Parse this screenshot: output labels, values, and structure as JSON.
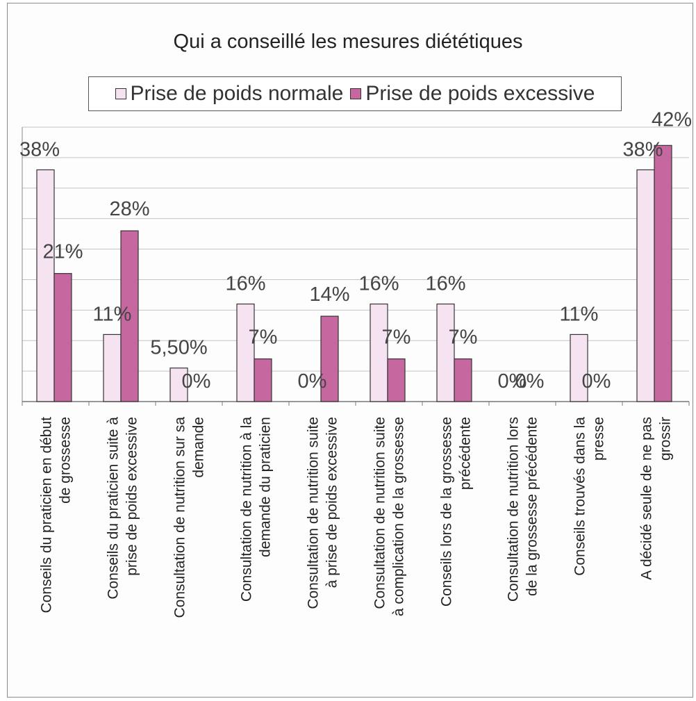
{
  "chart_data": {
    "type": "bar",
    "title": "Qui a conseillé les mesures diététiques",
    "categories": [
      [
        "Conseils du praticien en début",
        "de grossesse"
      ],
      [
        "Conseils du praticien suite à",
        "prise de poids excessive"
      ],
      [
        "Consultation de nutrition sur sa",
        "demande"
      ],
      [
        "Consultation de nutrition à la",
        "demande du praticien"
      ],
      [
        "Consultation de nutrition suite",
        "à prise de poids excessive"
      ],
      [
        "Consultation de nutrition suite",
        "à complication de la grossesse"
      ],
      [
        "Conseils lors de la grossesse",
        "précédente"
      ],
      [
        "Consultation de nutrition lors",
        "de la grossesse précédente"
      ],
      [
        "Conseils trouvés dans la",
        "presse"
      ],
      [
        "A décidé seule de ne pas",
        "grossir"
      ]
    ],
    "series": [
      {
        "name": "Prise de poids normale",
        "color": "#f6e3f2",
        "values": [
          38,
          11,
          5.5,
          16,
          0,
          16,
          16,
          0,
          11,
          38
        ],
        "labels": [
          "38%",
          "11%",
          "5,50%",
          "16%",
          "0%",
          "16%",
          "16%",
          "0%",
          "11%",
          "38%"
        ]
      },
      {
        "name": "Prise de poids excessive",
        "color": "#c7679f",
        "values": [
          21,
          28,
          0,
          7,
          14,
          7,
          7,
          0,
          0,
          42
        ],
        "labels": [
          "21%",
          "28%",
          "0%",
          "7%",
          "14%",
          "7%",
          "7%",
          "0%",
          "0%",
          "42%"
        ]
      }
    ],
    "ylim": [
      0,
      45
    ],
    "grid": true,
    "legend_position": "top"
  }
}
